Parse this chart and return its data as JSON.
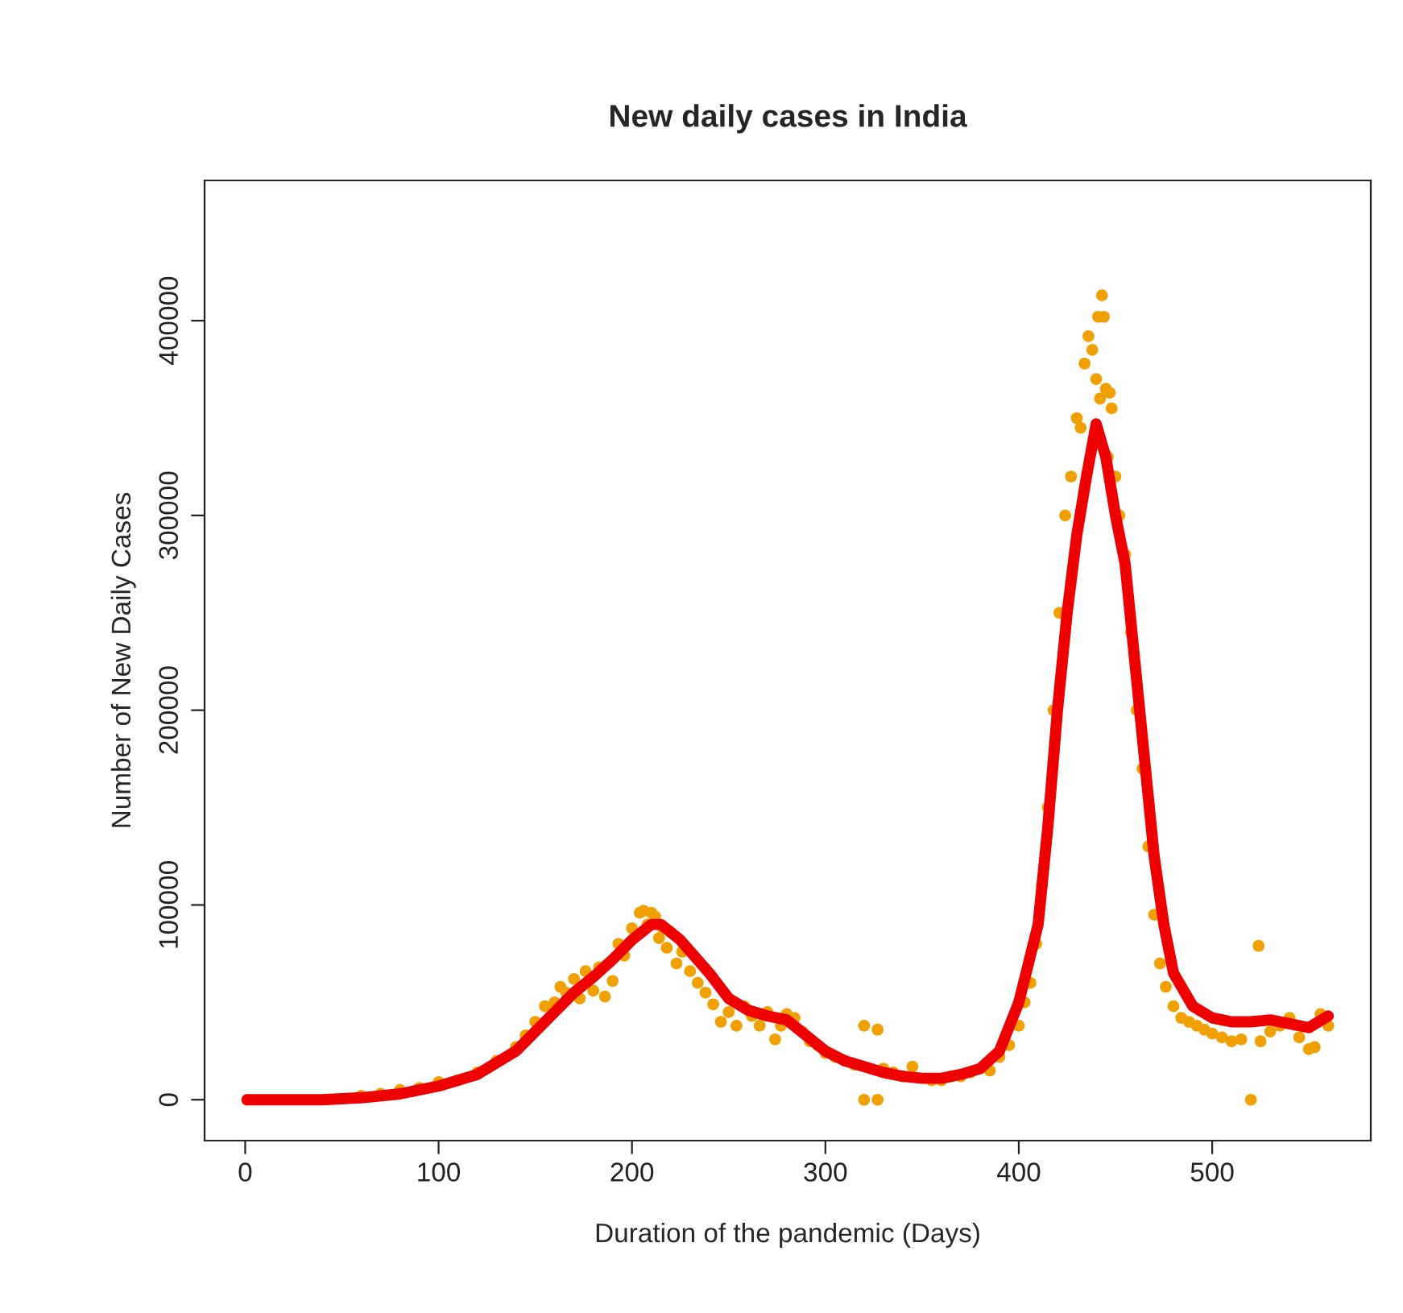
{
  "chart_data": {
    "type": "scatter",
    "title": "New daily cases in India",
    "xlabel": "Duration of the pandemic (Days)",
    "ylabel": "Number of New Daily Cases",
    "xlim": [
      -21,
      582
    ],
    "ylim": [
      -21000,
      472000
    ],
    "xticks": [
      0,
      100,
      200,
      300,
      400,
      500
    ],
    "yticks": [
      0,
      100000,
      200000,
      300000,
      400000
    ],
    "grid": false,
    "marker": "circle",
    "series": [
      {
        "color": "#f0a000",
        "x": [
          1,
          60,
          70,
          80,
          90,
          100,
          110,
          120,
          130,
          140,
          145,
          150,
          155,
          160,
          163,
          166,
          170,
          173,
          176,
          180,
          183,
          186,
          190,
          193,
          196,
          200,
          204,
          206,
          208,
          210,
          212,
          214,
          216,
          218,
          220,
          223,
          226,
          230,
          234,
          238,
          242,
          246,
          250,
          254,
          258,
          262,
          266,
          270,
          274,
          277,
          280,
          284,
          288,
          292,
          296,
          300,
          305,
          310,
          315,
          320,
          320,
          327,
          327,
          330,
          335,
          340,
          345,
          355,
          360,
          365,
          370,
          375,
          385,
          390,
          395,
          400,
          403,
          406,
          409,
          412,
          415,
          418,
          421,
          424,
          427,
          430,
          432,
          434,
          436,
          438,
          440,
          441,
          442,
          443,
          444,
          445,
          446,
          447,
          448,
          450,
          452,
          455,
          458,
          461,
          464,
          467,
          470,
          473,
          476,
          480,
          484,
          488,
          492,
          496,
          500,
          505,
          510,
          515,
          520,
          524,
          525,
          530,
          535,
          540,
          545,
          550,
          553,
          556,
          560
        ],
        "values": [
          0,
          2000,
          3000,
          5000,
          6000,
          9000,
          10000,
          14000,
          20000,
          27000,
          33000,
          40000,
          48000,
          50000,
          58000,
          55000,
          62000,
          52000,
          66000,
          56000,
          68000,
          53000,
          61000,
          80000,
          74000,
          88000,
          96000,
          97000,
          90000,
          96000,
          94000,
          83000,
          88000,
          78000,
          86000,
          70000,
          76000,
          66000,
          60000,
          55000,
          49000,
          40000,
          45000,
          38000,
          48000,
          43000,
          38000,
          45000,
          31000,
          38000,
          44000,
          42000,
          35000,
          30000,
          28000,
          24000,
          22000,
          20000,
          18000,
          38000,
          0,
          36000,
          0,
          16000,
          14000,
          12000,
          17000,
          10000,
          10000,
          12000,
          12000,
          14000,
          15000,
          22000,
          28000,
          38000,
          50000,
          60000,
          80000,
          110000,
          150000,
          200000,
          250000,
          300000,
          320000,
          350000,
          345000,
          378000,
          392000,
          385000,
          370000,
          402000,
          360000,
          413000,
          402000,
          365000,
          330000,
          363000,
          355000,
          320000,
          300000,
          280000,
          240000,
          200000,
          170000,
          130000,
          95000,
          70000,
          58000,
          48000,
          42000,
          40000,
          38000,
          36000,
          34000,
          32000,
          30000,
          31000,
          0,
          79000,
          30000,
          35000,
          38000,
          42000,
          32000,
          26000,
          27000,
          44000,
          38000
        ]
      },
      {
        "type": "line",
        "color": "#ee0000",
        "marker": "none",
        "line_style": "solid",
        "x": [
          1,
          20,
          40,
          60,
          80,
          100,
          120,
          140,
          160,
          170,
          180,
          190,
          200,
          210,
          215,
          225,
          240,
          250,
          260,
          270,
          280,
          290,
          300,
          310,
          320,
          330,
          340,
          350,
          360,
          370,
          380,
          390,
          400,
          410,
          415,
          420,
          425,
          430,
          435,
          440,
          445,
          450,
          455,
          460,
          465,
          470,
          475,
          480,
          490,
          500,
          510,
          520,
          530,
          540,
          550,
          560
        ],
        "values": [
          0,
          0,
          0,
          1000,
          3000,
          7000,
          13000,
          25000,
          45000,
          55000,
          63000,
          72000,
          82000,
          90000,
          90000,
          82000,
          65000,
          52000,
          46000,
          43000,
          41000,
          33000,
          25000,
          20000,
          17000,
          14000,
          12000,
          11000,
          11000,
          13000,
          16000,
          25000,
          50000,
          90000,
          140000,
          200000,
          250000,
          290000,
          320000,
          347000,
          330000,
          300000,
          275000,
          225000,
          175000,
          125000,
          90000,
          65000,
          48000,
          42000,
          40000,
          40000,
          41000,
          39000,
          37000,
          43000
        ]
      }
    ]
  }
}
